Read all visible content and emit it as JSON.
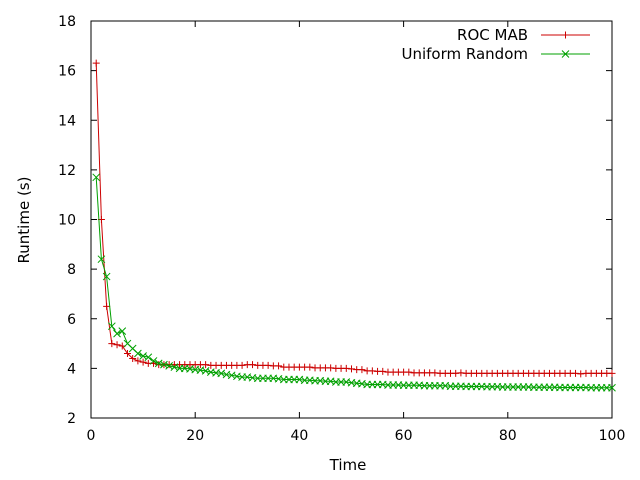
{
  "chart_data": {
    "type": "line",
    "title": "",
    "xlabel": "Time",
    "ylabel": "Runtime (s)",
    "xlim": [
      0,
      100
    ],
    "ylim": [
      2,
      18
    ],
    "x_ticks": [
      0,
      20,
      40,
      60,
      80,
      100
    ],
    "y_ticks": [
      2,
      4,
      6,
      8,
      10,
      12,
      14,
      16,
      18
    ],
    "x_tick_labels": [
      "0",
      "20",
      "40",
      "60",
      "80",
      "100"
    ],
    "y_tick_labels": [
      "2",
      "4",
      "6",
      "8",
      "10",
      "12",
      "14",
      "16",
      "18"
    ],
    "grid": false,
    "legend_position": "top-right",
    "series": [
      {
        "name": "ROC MAB",
        "color": "#cc0000",
        "marker": "plus",
        "x": [
          1,
          2,
          3,
          4,
          5,
          6,
          7,
          8,
          9,
          10,
          11,
          12,
          13,
          14,
          15,
          16,
          17,
          18,
          19,
          20,
          21,
          22,
          23,
          24,
          25,
          26,
          27,
          28,
          29,
          30,
          31,
          32,
          33,
          34,
          35,
          36,
          37,
          38,
          39,
          40,
          41,
          42,
          43,
          44,
          45,
          46,
          47,
          48,
          49,
          50,
          51,
          52,
          53,
          54,
          55,
          56,
          57,
          58,
          59,
          60,
          61,
          62,
          63,
          64,
          65,
          66,
          67,
          68,
          69,
          70,
          71,
          72,
          73,
          74,
          75,
          76,
          77,
          78,
          79,
          80,
          81,
          82,
          83,
          84,
          85,
          86,
          87,
          88,
          89,
          90,
          91,
          92,
          93,
          94,
          95,
          96,
          97,
          98,
          99,
          100
        ],
        "y": [
          16.3,
          10.0,
          6.5,
          5.0,
          4.95,
          4.9,
          4.6,
          4.4,
          4.3,
          4.25,
          4.2,
          4.2,
          4.15,
          4.15,
          4.15,
          4.15,
          4.15,
          4.15,
          4.15,
          4.15,
          4.15,
          4.15,
          4.12,
          4.12,
          4.12,
          4.12,
          4.12,
          4.12,
          4.12,
          4.15,
          4.15,
          4.12,
          4.12,
          4.12,
          4.1,
          4.1,
          4.05,
          4.05,
          4.05,
          4.05,
          4.05,
          4.05,
          4.02,
          4.02,
          4.02,
          4.02,
          4.0,
          4.0,
          4.0,
          3.98,
          3.95,
          3.95,
          3.9,
          3.9,
          3.88,
          3.88,
          3.85,
          3.85,
          3.85,
          3.85,
          3.85,
          3.82,
          3.82,
          3.82,
          3.82,
          3.82,
          3.8,
          3.8,
          3.8,
          3.8,
          3.82,
          3.8,
          3.8,
          3.8,
          3.8,
          3.8,
          3.8,
          3.8,
          3.8,
          3.8,
          3.8,
          3.8,
          3.8,
          3.8,
          3.8,
          3.8,
          3.8,
          3.8,
          3.8,
          3.8,
          3.8,
          3.8,
          3.8,
          3.78,
          3.8,
          3.8,
          3.8,
          3.8,
          3.8,
          3.8
        ]
      },
      {
        "name": "Uniform Random",
        "color": "#00a000",
        "marker": "cross",
        "x": [
          1,
          2,
          3,
          4,
          5,
          6,
          7,
          8,
          9,
          10,
          11,
          12,
          13,
          14,
          15,
          16,
          17,
          18,
          19,
          20,
          21,
          22,
          23,
          24,
          25,
          26,
          27,
          28,
          29,
          30,
          31,
          32,
          33,
          34,
          35,
          36,
          37,
          38,
          39,
          40,
          41,
          42,
          43,
          44,
          45,
          46,
          47,
          48,
          49,
          50,
          51,
          52,
          53,
          54,
          55,
          56,
          57,
          58,
          59,
          60,
          61,
          62,
          63,
          64,
          65,
          66,
          67,
          68,
          69,
          70,
          71,
          72,
          73,
          74,
          75,
          76,
          77,
          78,
          79,
          80,
          81,
          82,
          83,
          84,
          85,
          86,
          87,
          88,
          89,
          90,
          91,
          92,
          93,
          94,
          95,
          96,
          97,
          98,
          99,
          100
        ],
        "y": [
          11.7,
          8.4,
          7.7,
          5.7,
          5.4,
          5.5,
          5.0,
          4.8,
          4.6,
          4.5,
          4.45,
          4.3,
          4.2,
          4.15,
          4.1,
          4.05,
          4.0,
          4.0,
          3.98,
          3.95,
          3.93,
          3.9,
          3.85,
          3.82,
          3.8,
          3.75,
          3.72,
          3.68,
          3.65,
          3.65,
          3.62,
          3.6,
          3.6,
          3.6,
          3.6,
          3.58,
          3.55,
          3.55,
          3.55,
          3.55,
          3.52,
          3.52,
          3.5,
          3.5,
          3.48,
          3.48,
          3.45,
          3.45,
          3.45,
          3.42,
          3.4,
          3.38,
          3.35,
          3.35,
          3.35,
          3.35,
          3.33,
          3.33,
          3.33,
          3.32,
          3.32,
          3.32,
          3.32,
          3.3,
          3.3,
          3.3,
          3.3,
          3.3,
          3.28,
          3.28,
          3.28,
          3.27,
          3.27,
          3.27,
          3.27,
          3.26,
          3.26,
          3.26,
          3.25,
          3.25,
          3.25,
          3.25,
          3.25,
          3.25,
          3.24,
          3.24,
          3.24,
          3.24,
          3.24,
          3.23,
          3.23,
          3.23,
          3.23,
          3.23,
          3.23,
          3.22,
          3.22,
          3.22,
          3.22,
          3.22
        ]
      }
    ]
  }
}
